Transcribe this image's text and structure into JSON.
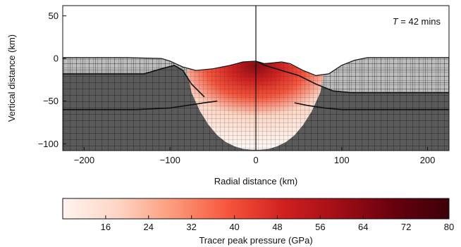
{
  "chart_data": [
    {
      "type": "heatmap",
      "subtype": "impact simulation cross-section (tracer grid)",
      "xlabel": "Radial distance (km)",
      "ylabel": "Vertical distance (km)",
      "xlim": [
        -225,
        225
      ],
      "ylim": [
        -108,
        62
      ],
      "x_ticks": [
        -200,
        -100,
        0,
        100,
        200
      ],
      "y_ticks": [
        50,
        0,
        -50,
        -100
      ],
      "x_tick_labels": [
        "−200",
        "−100",
        "0",
        "100",
        "200"
      ],
      "y_tick_labels": [
        "50",
        "0",
        "−50",
        "−100"
      ],
      "annotation": {
        "var": "T",
        "rest": " = 42 mins"
      },
      "background_colors": {
        "target": "#5a5a5a",
        "upper_layer": "#bdbdbd",
        "grid_line": "#111111"
      },
      "surface_profile": {
        "x": [
          -225,
          -200,
          -150,
          -110,
          -100,
          -85,
          -70,
          -50,
          -30,
          -15,
          0,
          10,
          20,
          30,
          40,
          55,
          70,
          85,
          100,
          115,
          130,
          160,
          200,
          225
        ],
        "y": [
          1,
          1,
          1,
          0,
          -3,
          -10,
          -14,
          -12,
          -8,
          -4,
          -3,
          -6,
          -5,
          -4,
          -6,
          -14,
          -20,
          -18,
          -8,
          -2,
          1,
          1,
          1,
          1
        ]
      },
      "layer_boundaries": [
        {
          "name": "upper",
          "x": [
            -225,
            -130,
            -110,
            -95,
            -85,
            -75,
            -60
          ],
          "y": [
            -18,
            -18,
            -12,
            -8,
            -14,
            -30,
            -45
          ]
        },
        {
          "name": "upper_right",
          "x": [
            0,
            10,
            30,
            50,
            70,
            90,
            110,
            130,
            160,
            225
          ],
          "y": [
            -3,
            -8,
            -14,
            -20,
            -30,
            -38,
            -40,
            -40,
            -40,
            -40
          ]
        },
        {
          "name": "lower",
          "x": [
            -225,
            -140,
            -100,
            -80,
            -60,
            -45
          ],
          "y": [
            -60,
            -60,
            -58,
            -55,
            -52,
            -50
          ]
        },
        {
          "name": "lower_right",
          "x": [
            45,
            60,
            80,
            100,
            130,
            225
          ],
          "y": [
            -52,
            -55,
            -58,
            -60,
            -60,
            -60
          ]
        }
      ],
      "pressure_plume": {
        "x": [
          -80,
          -75,
          -65,
          -55,
          -45,
          -35,
          -25,
          -15,
          -5,
          5,
          15,
          25,
          35,
          45,
          55,
          65,
          75,
          80
        ],
        "bottom": [
          -15,
          -40,
          -62,
          -78,
          -90,
          -98,
          -103,
          -106,
          -107,
          -107,
          -106,
          -103,
          -98,
          -90,
          -78,
          -62,
          -40,
          -15
        ],
        "peak_pressure_gpa": [
          8,
          12,
          16,
          20,
          26,
          32,
          40,
          52,
          70,
          70,
          52,
          40,
          32,
          26,
          20,
          16,
          12,
          8
        ]
      }
    },
    {
      "type": "colorbar",
      "label": "Tracer peak pressure (GPa)",
      "range": [
        8,
        80
      ],
      "ticks": [
        16,
        24,
        32,
        40,
        48,
        56,
        64,
        72,
        80
      ],
      "tick_labels": [
        "16",
        "24",
        "32",
        "40",
        "48",
        "56",
        "64",
        "72",
        "80"
      ],
      "colormap": [
        "#fff5f0",
        "#fdd5c4",
        "#fc9a7b",
        "#f6553c",
        "#d0201f",
        "#a10e16",
        "#67000d",
        "#3d0008"
      ]
    }
  ]
}
